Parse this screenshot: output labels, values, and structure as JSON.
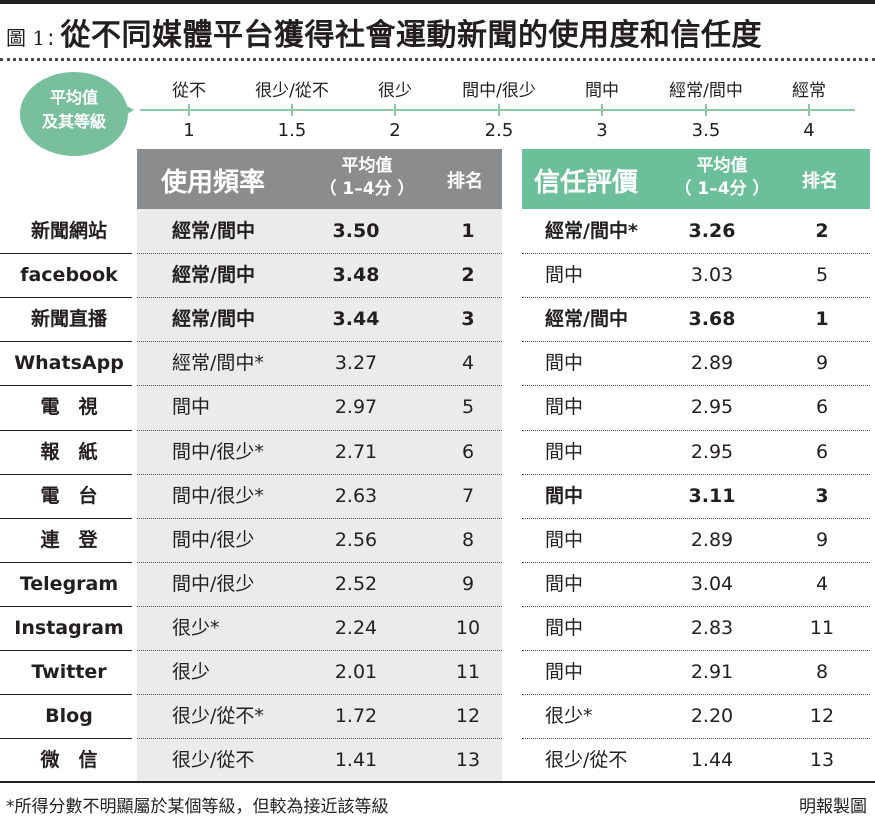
{
  "figure_label": "圖 1",
  "title": "從不同媒體平台獲得社會運動新聞的使用度和信任度",
  "scale": {
    "badge_line1": "平均值",
    "badge_line2": "及其等級",
    "points": [
      {
        "word": "從不",
        "value": "1"
      },
      {
        "word": "很少/從不",
        "value": "1.5"
      },
      {
        "word": "很少",
        "value": "2"
      },
      {
        "word": "間中/很少",
        "value": "2.5"
      },
      {
        "word": "間中",
        "value": "3"
      },
      {
        "word": "經常/間中",
        "value": "3.5"
      },
      {
        "word": "經常",
        "value": "4"
      }
    ]
  },
  "headers": {
    "usage": "使用頻率",
    "usage_avg_l1": "平均值",
    "usage_avg_l2": "（ 1–4分 ）",
    "usage_rank": "排名",
    "trust": "信任評價",
    "trust_avg_l1": "平均值",
    "trust_avg_l2": "（ 1–4分 ）",
    "trust_rank": "排名"
  },
  "rows": [
    {
      "name": "新聞網站",
      "use": "經常/間中",
      "use_avg": "3.50",
      "use_rank": "1",
      "use_bold": true,
      "trust": "經常/間中*",
      "trust_avg": "3.26",
      "trust_rank": "2",
      "trust_bold": true
    },
    {
      "name": "facebook",
      "use": "經常/間中",
      "use_avg": "3.48",
      "use_rank": "2",
      "use_bold": true,
      "trust": "間中",
      "trust_avg": "3.03",
      "trust_rank": "5",
      "trust_bold": false
    },
    {
      "name": "新聞直播",
      "use": "經常/間中",
      "use_avg": "3.44",
      "use_rank": "3",
      "use_bold": true,
      "trust": "經常/間中",
      "trust_avg": "3.68",
      "trust_rank": "1",
      "trust_bold": true
    },
    {
      "name": "WhatsApp",
      "use": "經常/間中*",
      "use_avg": "3.27",
      "use_rank": "4",
      "use_bold": false,
      "trust": "間中",
      "trust_avg": "2.89",
      "trust_rank": "9",
      "trust_bold": false
    },
    {
      "name": "電　視",
      "use": "間中",
      "use_avg": "2.97",
      "use_rank": "5",
      "use_bold": false,
      "trust": "間中",
      "trust_avg": "2.95",
      "trust_rank": "6",
      "trust_bold": false
    },
    {
      "name": "報　紙",
      "use": "間中/很少*",
      "use_avg": "2.71",
      "use_rank": "6",
      "use_bold": false,
      "trust": "間中",
      "trust_avg": "2.95",
      "trust_rank": "6",
      "trust_bold": false
    },
    {
      "name": "電　台",
      "use": "間中/很少*",
      "use_avg": "2.63",
      "use_rank": "7",
      "use_bold": false,
      "trust": "間中",
      "trust_avg": "3.11",
      "trust_rank": "3",
      "trust_bold": true
    },
    {
      "name": "連　登",
      "use": "間中/很少",
      "use_avg": "2.56",
      "use_rank": "8",
      "use_bold": false,
      "trust": "間中",
      "trust_avg": "2.89",
      "trust_rank": "9",
      "trust_bold": false
    },
    {
      "name": "Telegram",
      "use": "間中/很少",
      "use_avg": "2.52",
      "use_rank": "9",
      "use_bold": false,
      "trust": "間中",
      "trust_avg": "3.04",
      "trust_rank": "4",
      "trust_bold": false
    },
    {
      "name": "Instagram",
      "use": "很少*",
      "use_avg": "2.24",
      "use_rank": "10",
      "use_bold": false,
      "trust": "間中",
      "trust_avg": "2.83",
      "trust_rank": "11",
      "trust_bold": false
    },
    {
      "name": "Twitter",
      "use": "很少",
      "use_avg": "2.01",
      "use_rank": "11",
      "use_bold": false,
      "trust": "間中",
      "trust_avg": "2.91",
      "trust_rank": "8",
      "trust_bold": false
    },
    {
      "name": "Blog",
      "use": "很少/從不*",
      "use_avg": "1.72",
      "use_rank": "12",
      "use_bold": false,
      "trust": "很少*",
      "trust_avg": "2.20",
      "trust_rank": "12",
      "trust_bold": false
    },
    {
      "name": "微　信",
      "use": "很少/從不",
      "use_avg": "1.41",
      "use_rank": "13",
      "use_bold": false,
      "trust": "很少/從不",
      "trust_avg": "1.44",
      "trust_rank": "13",
      "trust_bold": false
    }
  ],
  "footnote": "*所得分數不明顯屬於某個等級，但較為接近該等級",
  "credit": "明報製圖",
  "colors": {
    "usage_header": "#8a8c8e",
    "trust_header": "#6cbf9b",
    "badge": "#78bf9e",
    "scale_line": "#8cc8a8",
    "usage_body": "#ebebeb"
  }
}
